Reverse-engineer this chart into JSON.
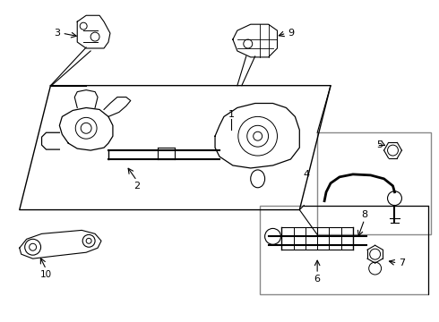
{
  "bg_color": "#ffffff",
  "line_color": "#000000",
  "gray_color": "#888888",
  "fig_w": 4.9,
  "fig_h": 3.6,
  "dpi": 100
}
